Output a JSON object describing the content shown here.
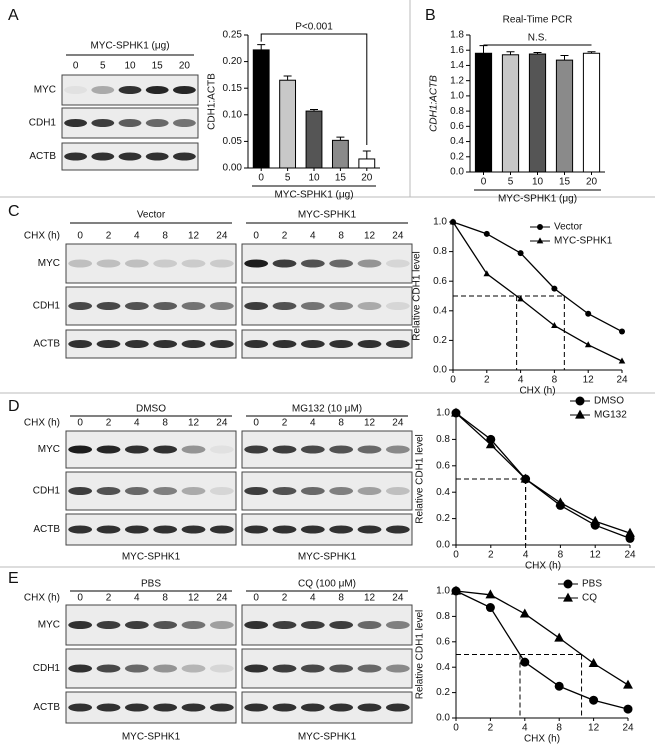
{
  "panel_labels": [
    "A",
    "B",
    "C",
    "D",
    "E"
  ],
  "blots": [
    {
      "groups": [
        {
          "title": "MYC-SPHK1 (μg)",
          "lanes": [
            "0",
            "5",
            "10",
            "15",
            "20"
          ]
        }
      ],
      "rows": [
        "MYC",
        "CDH1",
        "ACTB"
      ]
    },
    {
      "lane_axis": "CHX (h)",
      "groups": [
        {
          "title": "Vector",
          "lanes": [
            "0",
            "2",
            "4",
            "8",
            "12",
            "24"
          ]
        },
        {
          "title": "MYC-SPHK1",
          "lanes": [
            "0",
            "2",
            "4",
            "8",
            "12",
            "24"
          ]
        }
      ],
      "rows": [
        "MYC",
        "CDH1",
        "ACTB"
      ]
    },
    {
      "lane_axis": "CHX (h)",
      "groups": [
        {
          "title": "DMSO",
          "lanes": [
            "0",
            "2",
            "4",
            "8",
            "12",
            "24"
          ],
          "footer": "MYC-SPHK1"
        },
        {
          "title": "MG132 (10 μM)",
          "lanes": [
            "0",
            "2",
            "4",
            "8",
            "12",
            "24"
          ],
          "footer": "MYC-SPHK1"
        }
      ],
      "rows": [
        "MYC",
        "CDH1",
        "ACTB"
      ]
    },
    {
      "lane_axis": "CHX (h)",
      "groups": [
        {
          "title": "PBS",
          "lanes": [
            "0",
            "2",
            "4",
            "8",
            "12",
            "24"
          ],
          "footer": "MYC-SPHK1"
        },
        {
          "title": "CQ (100 μM)",
          "lanes": [
            "0",
            "2",
            "4",
            "8",
            "12",
            "24"
          ],
          "footer": "MYC-SPHK1"
        }
      ],
      "rows": [
        "MYC",
        "CDH1",
        "ACTB"
      ]
    }
  ],
  "chart_data": [
    {
      "type": "bar",
      "categories": [
        "0",
        "5",
        "10",
        "15",
        "20"
      ],
      "values": [
        0.222,
        0.165,
        0.107,
        0.052,
        0.017
      ],
      "errors": [
        0.01,
        0.008,
        0.003,
        0.006,
        0.015
      ],
      "colors": [
        "#000000",
        "#c8c8c8",
        "#555555",
        "#8a8a8a",
        "#ffffff"
      ],
      "ylim": [
        0,
        0.25
      ],
      "yticks": [
        {
          "value": 0,
          "label": "0.00"
        },
        0.05,
        {
          "value": 0.1,
          "label": "0.10"
        },
        0.15,
        {
          "value": 0.2,
          "label": "0.20"
        },
        0.25
      ],
      "y_label": "CDH1:ACTB",
      "x_label": "MYC-SPHK1 (μg)",
      "annotation": "P<0.001"
    },
    {
      "type": "bar",
      "title": "Real-Time PCR",
      "categories": [
        "0",
        "5",
        "10",
        "15",
        "20"
      ],
      "values": [
        1.56,
        1.54,
        1.55,
        1.47,
        1.56
      ],
      "errors": [
        0.1,
        0.04,
        0.02,
        0.06,
        0.02
      ],
      "colors": [
        "#000000",
        "#c8c8c8",
        "#555555",
        "#8a8a8a",
        "#ffffff"
      ],
      "ylim": [
        0,
        1.8
      ],
      "yticks": [
        {
          "value": 0,
          "label": "0.0"
        },
        0.2,
        0.4,
        0.6,
        0.8,
        {
          "value": 1,
          "label": "1.0"
        },
        1.2,
        1.4,
        1.6,
        1.8
      ],
      "y_label": "CDH1:ACTB",
      "x_label": "MYC-SPHK1 (μg)",
      "annotation": "N.S."
    },
    {
      "type": "line",
      "categories": [
        "0",
        "2",
        "4",
        "8",
        "12",
        "24"
      ],
      "series": [
        {
          "name": "Vector",
          "color": "#000000",
          "marker": "circle",
          "values": [
            1.0,
            0.92,
            0.79,
            0.55,
            0.38,
            0.26
          ]
        },
        {
          "name": "MYC-SPHK1",
          "color": "#000000",
          "marker": "triangle",
          "values": [
            1.0,
            0.65,
            0.48,
            0.3,
            0.17,
            0.06
          ]
        }
      ],
      "ylim": [
        0,
        1
      ],
      "yticks": [
        {
          "value": 0,
          "label": "0.0"
        },
        0.2,
        0.4,
        0.6,
        0.8,
        {
          "value": 1,
          "label": "1.0"
        }
      ],
      "reference_level": 0.5,
      "y_label": "Relative CDH1 level",
      "x_label": "CHX (h)"
    },
    {
      "type": "line",
      "categories": [
        "0",
        "2",
        "4",
        "8",
        "12",
        "24"
      ],
      "series": [
        {
          "name": "DMSO",
          "color": "#000000",
          "marker": "circle",
          "values": [
            1.0,
            0.8,
            0.5,
            0.3,
            0.15,
            0.05
          ]
        },
        {
          "name": "MG132",
          "color": "#000000",
          "marker": "triangle",
          "values": [
            1.0,
            0.76,
            0.5,
            0.32,
            0.18,
            0.09
          ]
        }
      ],
      "ylim": [
        0,
        1
      ],
      "yticks": [
        {
          "value": 0,
          "label": "0.0"
        },
        0.2,
        0.4,
        0.6,
        0.8,
        {
          "value": 1,
          "label": "1.0"
        }
      ],
      "reference_level": 0.5,
      "y_label": "Relative CDH1 level",
      "x_label": "CHX (h)"
    },
    {
      "type": "line",
      "categories": [
        "0",
        "2",
        "4",
        "8",
        "12",
        "24"
      ],
      "series": [
        {
          "name": "PBS",
          "color": "#000000",
          "marker": "circle",
          "values": [
            1.0,
            0.87,
            0.44,
            0.25,
            0.14,
            0.07
          ]
        },
        {
          "name": "CQ",
          "color": "#000000",
          "marker": "triangle",
          "values": [
            1.0,
            0.97,
            0.82,
            0.63,
            0.43,
            0.26
          ]
        }
      ],
      "ylim": [
        0,
        1
      ],
      "yticks": [
        {
          "value": 0,
          "label": "0.0"
        },
        0.2,
        0.4,
        0.6,
        0.8,
        {
          "value": 1,
          "label": "1.0"
        }
      ],
      "reference_level": 0.5,
      "y_label": "Relative CDH1 level",
      "x_label": "CHX (h)"
    }
  ]
}
